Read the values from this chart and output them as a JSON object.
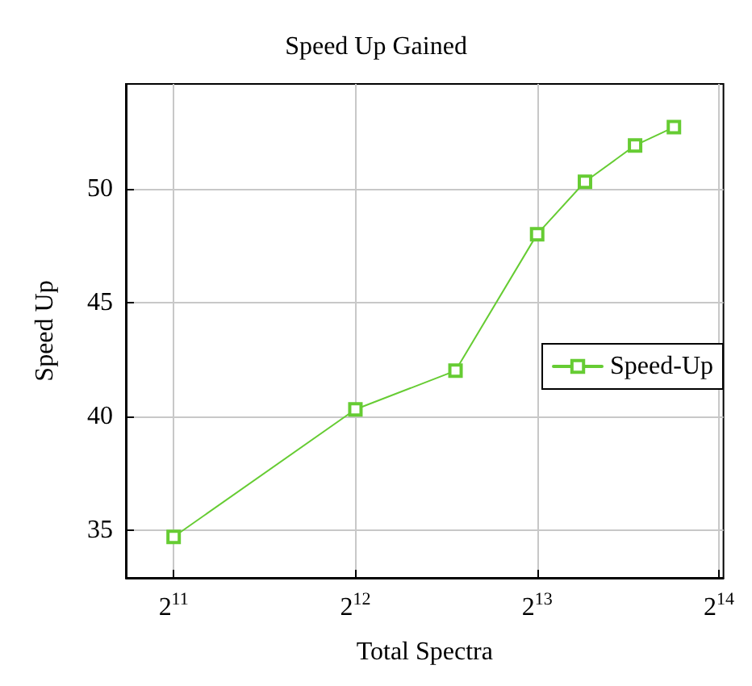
{
  "chart_data": {
    "type": "line",
    "title": "Speed Up Gained",
    "xlabel": "Total Spectra",
    "ylabel": "Speed Up",
    "x": [
      2048,
      4096,
      6000,
      8192,
      9830,
      11900,
      13800
    ],
    "series": [
      {
        "name": "Speed-Up",
        "color": "#66cc33",
        "values": [
          34.7,
          40.3,
          42.0,
          48.0,
          50.3,
          51.9,
          52.7
        ]
      }
    ],
    "log": "x",
    "xlim": [
      1707,
      16670
    ],
    "xticks": [
      {
        "value": 2048,
        "label": "2$^{11}$"
      },
      {
        "value": 4096,
        "label": "2$^{12}$"
      },
      {
        "value": 8192,
        "label": "2$^{13}$"
      },
      {
        "value": 16384,
        "label": "2$^{14}$"
      }
    ],
    "ylim": [
      32.9,
      54.6
    ],
    "yticks": [
      35,
      40,
      45,
      50
    ],
    "grid": true,
    "legend": "right",
    "marker": "square",
    "line_style": "solid"
  }
}
